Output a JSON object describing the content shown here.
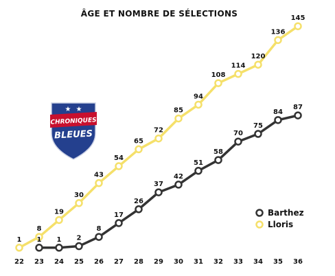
{
  "chart_data": {
    "type": "line",
    "title": "ÂGE ET NOMBRE DE SÉLECTIONS",
    "xlabel": "",
    "ylabel": "",
    "x": [
      22,
      23,
      24,
      25,
      26,
      27,
      28,
      29,
      30,
      31,
      32,
      33,
      34,
      35,
      36
    ],
    "xlim": [
      22,
      36
    ],
    "ylim": [
      0,
      145
    ],
    "grid": false,
    "legend_position": "bottom-right",
    "series": [
      {
        "name": "Barthez",
        "color": "#333333",
        "x": [
          23,
          24,
          25,
          26,
          27,
          28,
          29,
          30,
          31,
          32,
          33,
          34,
          35,
          36
        ],
        "values": [
          1,
          1,
          2,
          8,
          17,
          26,
          37,
          42,
          51,
          58,
          70,
          75,
          84,
          87
        ]
      },
      {
        "name": "Lloris",
        "color": "#f5e06a",
        "x": [
          22,
          23,
          24,
          25,
          26,
          27,
          28,
          29,
          30,
          31,
          32,
          33,
          34,
          35,
          36
        ],
        "values": [
          1,
          8,
          19,
          30,
          43,
          54,
          65,
          72,
          85,
          94,
          108,
          114,
          120,
          136,
          145
        ]
      }
    ]
  },
  "logo": {
    "line1": "CHRONIQUES",
    "line2": "BLEUES",
    "icon": "star-crest-icon"
  }
}
